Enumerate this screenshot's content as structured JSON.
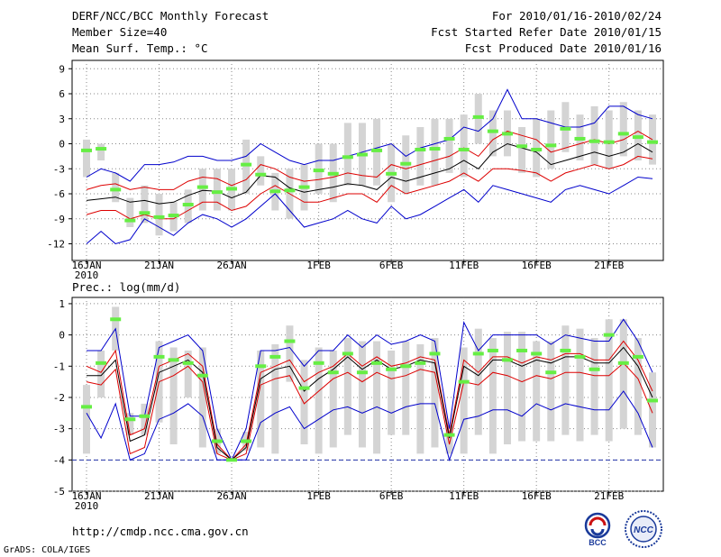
{
  "header": {
    "title": "DERF/NCC/BCC Monthly Forecast",
    "member_size": "Member Size=40",
    "variable": "Mean Surf. Temp.: °C",
    "period": "For 2010/01/16-2010/02/24",
    "fcst_started": "Fcst Started Refer Date 2010/01/15",
    "fcst_produced": "Fcst Produced Date 2010/01/16"
  },
  "footer": {
    "url": "http://cmdp.ncc.cma.gov.cn",
    "grads": "GrADS: COLA/IGES",
    "logo_left_text": "BCC",
    "logo_right_text": "NCC"
  },
  "colors": {
    "ensemble_mean": "#000000",
    "inner_band": "#dd0000",
    "outer_envelope": "#0000cc",
    "median_mark": "#66ee44",
    "box": "#d4d4d4",
    "floor_line": "#2233aa"
  },
  "chart_data": [
    {
      "type": "line",
      "title": "Mean Surf. Temp.: °C",
      "days": 40,
      "x_tick_labels": [
        "16JAN",
        "21JAN",
        "26JAN",
        "1FEB",
        "6FEB",
        "11FEB",
        "16FEB",
        "21FEB"
      ],
      "x_tick_days": [
        0,
        5,
        10,
        16,
        21,
        26,
        31,
        36
      ],
      "x_year_label": "2010",
      "y_ticks": [
        9,
        6,
        3,
        0,
        -3,
        -6,
        -9,
        -12
      ],
      "ylim": [
        -14,
        10
      ],
      "series": [
        {
          "name": "max",
          "values": [
            -12,
            -10.5,
            -12,
            -11.5,
            -9,
            -10,
            -11,
            -9.5,
            -8.5,
            -9,
            -10,
            -9,
            -7.5,
            -6,
            -8,
            -10,
            -9.5,
            -9,
            -8,
            -9,
            -9.5,
            -7.5,
            -9,
            -8.5,
            -7.5,
            -6.5,
            -5.5,
            -7,
            -5,
            -5.5,
            -6,
            -6.5,
            -7,
            -5.5,
            -5,
            -5.5,
            -6,
            -5,
            -4,
            -4.2
          ]
        },
        {
          "name": "upper",
          "values": [
            -8.5,
            -8,
            -8,
            -9,
            -8.5,
            -9,
            -9,
            -8,
            -7,
            -7,
            -8,
            -7.5,
            -6,
            -5,
            -6,
            -7,
            -7,
            -6.5,
            -6,
            -6,
            -7,
            -5,
            -6,
            -5.5,
            -5,
            -4.5,
            -3.5,
            -4.5,
            -3,
            -3,
            -3.2,
            -3.5,
            -4.5,
            -3.5,
            -3,
            -2.5,
            -3,
            -2.5,
            -1.5,
            -1.8
          ]
        },
        {
          "name": "mean",
          "values": [
            -6.8,
            -6.6,
            -6.4,
            -7,
            -6.8,
            -7.2,
            -7,
            -6.2,
            -5.6,
            -5.7,
            -6.5,
            -5.8,
            -3.8,
            -4,
            -5.3,
            -5.8,
            -5.5,
            -5.2,
            -4.8,
            -5,
            -5.5,
            -4,
            -4.5,
            -4,
            -3.5,
            -3,
            -2,
            -3,
            -1,
            0,
            -0.5,
            -1,
            -2.5,
            -2,
            -1.5,
            -1,
            -1.5,
            -1,
            0,
            -1
          ]
        },
        {
          "name": "lower",
          "values": [
            -5.5,
            -5,
            -4.8,
            -5.5,
            -5.2,
            -5.5,
            -5.5,
            -4.5,
            -4,
            -4.2,
            -5,
            -4.3,
            -2.5,
            -3,
            -4,
            -4.5,
            -4.3,
            -4,
            -3.5,
            -3.8,
            -4,
            -2.5,
            -3,
            -2.5,
            -2,
            -1.5,
            -0.5,
            -1.5,
            0.5,
            1.5,
            1,
            0.5,
            -1,
            -0.5,
            0,
            0.5,
            0,
            0.5,
            1.5,
            0.5
          ]
        },
        {
          "name": "min",
          "values": [
            -4,
            -3,
            -3.5,
            -4.5,
            -2.5,
            -2.5,
            -2.2,
            -1.5,
            -1.5,
            -2,
            -2,
            -1.5,
            0,
            -1,
            -2,
            -2.5,
            -2,
            -2,
            -1.5,
            -1,
            -0.5,
            0,
            -1.5,
            -0.5,
            0,
            0.5,
            2,
            1.5,
            3,
            6.5,
            3,
            3,
            2.5,
            2,
            2,
            2.5,
            4.5,
            4.5,
            3.5,
            3
          ]
        },
        {
          "name": "median",
          "values": [
            -0.8,
            -0.6,
            -5.5,
            -9.2,
            -8.3,
            -8.8,
            -8.6,
            -7.3,
            -5.2,
            -5.8,
            -5.4,
            -2.5,
            -3.7,
            -5.7,
            -5.6,
            -5.2,
            -3.2,
            -3.6,
            -1.6,
            -1.3,
            -0.8,
            -3.6,
            -2.4,
            -0.7,
            -0.6,
            0.6,
            -0.7,
            3.2,
            1.5,
            1.2,
            -0.3,
            -0.7,
            -0.2,
            1.8,
            0.6,
            0.3,
            0.2,
            1.2,
            0.8,
            0.2
          ]
        }
      ],
      "boxes": {
        "low": [
          -4,
          -2,
          -7,
          -10,
          -9.5,
          -11,
          -10.5,
          -9.5,
          -8,
          -8,
          -8,
          -6,
          -5,
          -8,
          -9,
          -8,
          -6,
          -7,
          -5,
          -5,
          -5,
          -7,
          -6,
          -5,
          -5,
          -3.5,
          -4,
          0,
          -1.5,
          -1.5,
          -3.5,
          -4,
          -3,
          -1,
          -2,
          -2.5,
          -3,
          -1.5,
          -2,
          -2.5
        ],
        "high": [
          0.5,
          0,
          -3.5,
          -6.5,
          -5,
          -6,
          -7,
          -5.5,
          -3,
          -3,
          -3,
          0.5,
          -1.5,
          -3.5,
          -3,
          -2.5,
          0,
          0,
          2.5,
          2.5,
          3,
          0,
          1,
          2,
          3,
          3,
          3.5,
          6,
          4,
          4,
          2,
          3,
          4,
          5,
          3.5,
          4.5,
          4,
          5,
          4,
          3.5
        ]
      }
    },
    {
      "type": "line",
      "title": "Prec.: log(mm/d)",
      "days": 40,
      "x_tick_labels": [
        "16JAN",
        "21JAN",
        "26JAN",
        "1FEB",
        "6FEB",
        "11FEB",
        "16FEB",
        "21FEB"
      ],
      "x_tick_days": [
        0,
        5,
        10,
        16,
        21,
        26,
        31,
        36
      ],
      "x_year_label": "2010",
      "y_ticks": [
        1,
        0,
        -1,
        -2,
        -3,
        -4,
        -5
      ],
      "ylim": [
        -5,
        1.2
      ],
      "floor_value": -4,
      "series": [
        {
          "name": "max",
          "values": [
            -0.5,
            -0.5,
            0.2,
            -2.6,
            -2.6,
            -0.4,
            -0.2,
            0,
            -0.5,
            -3,
            -4,
            -3,
            -0.5,
            -0.5,
            -0.4,
            -1,
            -0.5,
            -0.5,
            0,
            -0.4,
            0,
            -0.3,
            -0.2,
            0,
            -0.2,
            -3,
            0.4,
            -0.5,
            0,
            0,
            0,
            0,
            -0.3,
            0,
            -0.1,
            -0.2,
            -0.2,
            0.5,
            -0.2,
            -1.2
          ]
        },
        {
          "name": "upper",
          "values": [
            -1,
            -1.2,
            -0.5,
            -3.2,
            -3,
            -1,
            -0.8,
            -0.6,
            -1,
            -3.5,
            -4,
            -3.5,
            -1.2,
            -1,
            -0.8,
            -1.5,
            -1.2,
            -1,
            -0.6,
            -1,
            -0.7,
            -1,
            -0.9,
            -0.7,
            -0.8,
            -3.2,
            -0.8,
            -1.2,
            -0.7,
            -0.7,
            -0.9,
            -0.7,
            -0.8,
            -0.6,
            -0.6,
            -0.8,
            -0.8,
            -0.2,
            -0.8,
            -1.8
          ]
        },
        {
          "name": "mean",
          "values": [
            -1.3,
            -1.3,
            -0.8,
            -3.4,
            -3.2,
            -1.2,
            -1,
            -0.8,
            -1.2,
            -3.6,
            -4,
            -3.6,
            -1.4,
            -1.1,
            -1,
            -1.8,
            -1.4,
            -1.1,
            -0.7,
            -1.1,
            -0.8,
            -1.1,
            -1,
            -0.8,
            -0.9,
            -3.3,
            -1,
            -1.3,
            -0.8,
            -0.8,
            -1,
            -0.8,
            -0.9,
            -0.7,
            -0.7,
            -0.9,
            -0.9,
            -0.4,
            -1,
            -2
          ]
        },
        {
          "name": "lower",
          "values": [
            -1.5,
            -1.6,
            -1.1,
            -3.8,
            -3.6,
            -1.5,
            -1.3,
            -1,
            -1.5,
            -3.8,
            -4,
            -3.8,
            -1.6,
            -1.4,
            -1.3,
            -2.2,
            -1.8,
            -1.4,
            -1.2,
            -1.5,
            -1.2,
            -1.4,
            -1.3,
            -1.1,
            -1.2,
            -3.5,
            -1.5,
            -1.6,
            -1.2,
            -1.3,
            -1.5,
            -1.3,
            -1.4,
            -1.2,
            -1.2,
            -1.3,
            -1.3,
            -0.9,
            -1.4,
            -2.5
          ]
        },
        {
          "name": "min",
          "values": [
            -2.5,
            -3.3,
            -2.2,
            -4,
            -3.8,
            -2.7,
            -2.5,
            -2.2,
            -2.6,
            -4,
            -4,
            -4,
            -2.8,
            -2.5,
            -2.3,
            -3,
            -2.7,
            -2.4,
            -2.3,
            -2.5,
            -2.3,
            -2.5,
            -2.3,
            -2.2,
            -2.2,
            -4,
            -2.7,
            -2.6,
            -2.4,
            -2.4,
            -2.6,
            -2.2,
            -2.4,
            -2.2,
            -2.3,
            -2.4,
            -2.4,
            -1.8,
            -2.5,
            -3.6
          ]
        },
        {
          "name": "median",
          "values": [
            -2.3,
            -0.9,
            0.5,
            -2.7,
            -2.6,
            -0.7,
            -0.8,
            -0.9,
            -1.3,
            -3.4,
            -4,
            -3.4,
            -1,
            -0.7,
            -0.2,
            -1.7,
            -0.9,
            -1.2,
            -0.6,
            -1.2,
            -0.9,
            -1.1,
            -1,
            -0.9,
            -0.6,
            -3.2,
            -1.5,
            -0.6,
            -0.5,
            -0.8,
            -0.5,
            -0.6,
            -1.2,
            -0.5,
            -0.7,
            -1.1,
            0,
            -0.9,
            -0.7,
            -2.1
          ]
        }
      ],
      "boxes": {
        "low": [
          -3.8,
          -2,
          -0.5,
          -3.2,
          -3.2,
          -2.8,
          -3.5,
          -2,
          -3.6,
          -3.8,
          -4,
          -3.7,
          -3.6,
          -3.8,
          -1.5,
          -3.5,
          -3.8,
          -3.6,
          -3.2,
          -3.6,
          -3.8,
          -3.2,
          -3.2,
          -3.8,
          -3.6,
          -3.8,
          -3.8,
          -3.2,
          -3.8,
          -3.5,
          -3.4,
          -3.4,
          -3.4,
          -3.2,
          -3.4,
          -3.2,
          -3.4,
          -3,
          -3.2,
          -3.6
        ],
        "high": [
          -1.6,
          -0.5,
          0.9,
          -2.5,
          -2.2,
          -0.2,
          -0.4,
          -0.5,
          -0.4,
          -3,
          -4,
          -3.1,
          -0.5,
          -0.3,
          0.3,
          -0.8,
          -0.4,
          -0.5,
          -0.1,
          -0.2,
          -0.2,
          -0.5,
          -0.2,
          -0.3,
          -0.1,
          -2.9,
          -0.4,
          0.2,
          -0.1,
          0.1,
          0.1,
          -0.2,
          -0.2,
          0.3,
          0.2,
          -0.1,
          0.5,
          0.5,
          -0.1,
          -1.2
        ]
      }
    }
  ]
}
